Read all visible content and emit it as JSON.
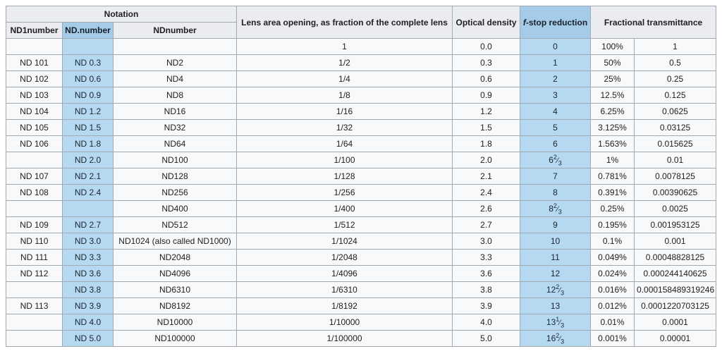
{
  "table": {
    "header": {
      "notation": "Notation",
      "nd1number": "ND1number",
      "nd_dot_number": "ND.number",
      "ndnumber": "NDnumber",
      "lens_area": "Lens area opening, as fraction of the complete lens",
      "optical_density": "Optical density",
      "fstop_italic": "f",
      "fstop_rest": "-stop reduction",
      "fractional_transmittance": "Fractional transmittance"
    },
    "colors": {
      "header_bg": "#eaecf0",
      "cell_bg": "#f8f9fa",
      "highlight_header_bg": "#a4cce9",
      "highlight_cell_bg": "#b6d9f2",
      "border": "#a2a9b1",
      "text": "#202122"
    },
    "highlighted_columns": [
      "ND.number",
      "f-stop reduction"
    ]
  },
  "chart_data": {
    "type": "table",
    "columns": [
      "ND1number",
      "ND.number",
      "NDnumber",
      "Lens area opening, as fraction of the complete lens",
      "Optical density",
      "f-stop reduction",
      "Fractional transmittance (percent)",
      "Fractional transmittance (fraction)"
    ],
    "rows": [
      {
        "nd1number": "",
        "nd_dot_number": "",
        "ndnumber": "",
        "lens_area": "1",
        "optical_density": "0.0",
        "fstop": "0",
        "transmittance_percent": "100%",
        "transmittance_fraction": "1"
      },
      {
        "nd1number": "ND 101",
        "nd_dot_number": "ND 0.3",
        "ndnumber": "ND2",
        "lens_area": "1/2",
        "optical_density": "0.3",
        "fstop": "1",
        "transmittance_percent": "50%",
        "transmittance_fraction": "0.5"
      },
      {
        "nd1number": "ND 102",
        "nd_dot_number": "ND 0.6",
        "ndnumber": "ND4",
        "lens_area": "1/4",
        "optical_density": "0.6",
        "fstop": "2",
        "transmittance_percent": "25%",
        "transmittance_fraction": "0.25"
      },
      {
        "nd1number": "ND 103",
        "nd_dot_number": "ND 0.9",
        "ndnumber": "ND8",
        "lens_area": "1/8",
        "optical_density": "0.9",
        "fstop": "3",
        "transmittance_percent": "12.5%",
        "transmittance_fraction": "0.125"
      },
      {
        "nd1number": "ND 104",
        "nd_dot_number": "ND 1.2",
        "ndnumber": "ND16",
        "lens_area": "1/16",
        "optical_density": "1.2",
        "fstop": "4",
        "transmittance_percent": "6.25%",
        "transmittance_fraction": "0.0625"
      },
      {
        "nd1number": "ND 105",
        "nd_dot_number": "ND 1.5",
        "ndnumber": "ND32",
        "lens_area": "1/32",
        "optical_density": "1.5",
        "fstop": "5",
        "transmittance_percent": "3.125%",
        "transmittance_fraction": "0.03125"
      },
      {
        "nd1number": "ND 106",
        "nd_dot_number": "ND 1.8",
        "ndnumber": "ND64",
        "lens_area": "1/64",
        "optical_density": "1.8",
        "fstop": "6",
        "transmittance_percent": "1.563%",
        "transmittance_fraction": "0.015625"
      },
      {
        "nd1number": "",
        "nd_dot_number": "ND 2.0",
        "ndnumber": "ND100",
        "lens_area": "1/100",
        "optical_density": "2.0",
        "fstop": {
          "whole": "6",
          "num": "2",
          "den": "3"
        },
        "transmittance_percent": "1%",
        "transmittance_fraction": "0.01"
      },
      {
        "nd1number": "ND 107",
        "nd_dot_number": "ND 2.1",
        "ndnumber": "ND128",
        "lens_area": "1/128",
        "optical_density": "2.1",
        "fstop": "7",
        "transmittance_percent": "0.781%",
        "transmittance_fraction": "0.0078125"
      },
      {
        "nd1number": "ND 108",
        "nd_dot_number": "ND 2.4",
        "ndnumber": "ND256",
        "lens_area": "1/256",
        "optical_density": "2.4",
        "fstop": "8",
        "transmittance_percent": "0.391%",
        "transmittance_fraction": "0.00390625"
      },
      {
        "nd1number": "",
        "nd_dot_number": "",
        "ndnumber": "ND400",
        "lens_area": "1/400",
        "optical_density": "2.6",
        "fstop": {
          "whole": "8",
          "num": "2",
          "den": "3"
        },
        "transmittance_percent": "0.25%",
        "transmittance_fraction": "0.0025"
      },
      {
        "nd1number": "ND 109",
        "nd_dot_number": "ND 2.7",
        "ndnumber": "ND512",
        "lens_area": "1/512",
        "optical_density": "2.7",
        "fstop": "9",
        "transmittance_percent": "0.195%",
        "transmittance_fraction": "0.001953125"
      },
      {
        "nd1number": "ND 110",
        "nd_dot_number": "ND 3.0",
        "ndnumber": "ND1024 (also called ND1000)",
        "lens_area": "1/1024",
        "optical_density": "3.0",
        "fstop": "10",
        "transmittance_percent": "0.1%",
        "transmittance_fraction": "0.001"
      },
      {
        "nd1number": "ND 111",
        "nd_dot_number": "ND 3.3",
        "ndnumber": "ND2048",
        "lens_area": "1/2048",
        "optical_density": "3.3",
        "fstop": "11",
        "transmittance_percent": "0.049%",
        "transmittance_fraction": "0.00048828125"
      },
      {
        "nd1number": "ND 112",
        "nd_dot_number": "ND 3.6",
        "ndnumber": "ND4096",
        "lens_area": "1/4096",
        "optical_density": "3.6",
        "fstop": "12",
        "transmittance_percent": "0.024%",
        "transmittance_fraction": "0.000244140625"
      },
      {
        "nd1number": "",
        "nd_dot_number": "ND 3.8",
        "ndnumber": "ND6310",
        "lens_area": "1/6310",
        "optical_density": "3.8",
        "fstop": {
          "whole": "12",
          "num": "2",
          "den": "3"
        },
        "transmittance_percent": "0.016%",
        "transmittance_fraction": "0.000158489319246"
      },
      {
        "nd1number": "ND 113",
        "nd_dot_number": "ND 3.9",
        "ndnumber": "ND8192",
        "lens_area": "1/8192",
        "optical_density": "3.9",
        "fstop": "13",
        "transmittance_percent": "0.012%",
        "transmittance_fraction": "0.0001220703125"
      },
      {
        "nd1number": "",
        "nd_dot_number": "ND 4.0",
        "ndnumber": "ND10000",
        "lens_area": "1/10000",
        "optical_density": "4.0",
        "fstop": {
          "whole": "13",
          "num": "1",
          "den": "3"
        },
        "transmittance_percent": "0.01%",
        "transmittance_fraction": "0.0001"
      },
      {
        "nd1number": "",
        "nd_dot_number": "ND 5.0",
        "ndnumber": "ND100000",
        "lens_area": "1/100000",
        "optical_density": "5.0",
        "fstop": {
          "whole": "16",
          "num": "2",
          "den": "3"
        },
        "transmittance_percent": "0.001%",
        "transmittance_fraction": "0.00001"
      }
    ]
  }
}
